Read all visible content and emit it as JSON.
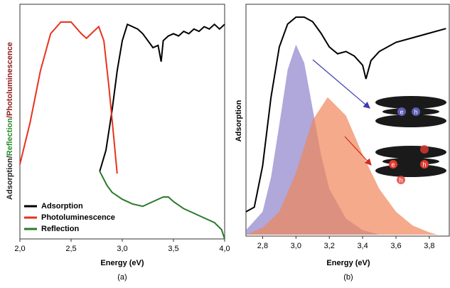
{
  "chart_data": [
    {
      "type": "line",
      "ylabel_parts": [
        {
          "text": "Adsorption/",
          "color": "#222222"
        },
        {
          "text": "Reflection",
          "color": "#2a8a2a"
        },
        {
          "text": "/Photoluminescence",
          "color": "#8b1a1a"
        }
      ],
      "xlabel": "Energy (eV)",
      "caption": "(a)",
      "xlim": [
        2.0,
        4.0
      ],
      "ylim": [
        0,
        1
      ],
      "xticks": [
        {
          "value": 2.0,
          "label": "2,0"
        },
        {
          "value": 2.5,
          "label": "2,5"
        },
        {
          "value": 3.0,
          "label": "3,0"
        },
        {
          "value": 3.5,
          "label": "3,5"
        },
        {
          "value": 4.0,
          "label": "4,0"
        }
      ],
      "legend": "lower left",
      "series": [
        {
          "name": "Adsorption",
          "color": "#000000",
          "x": [
            2.78,
            2.84,
            2.9,
            2.95,
            3.0,
            3.05,
            3.1,
            3.15,
            3.2,
            3.25,
            3.3,
            3.35,
            3.38,
            3.4,
            3.45,
            3.5,
            3.55,
            3.6,
            3.65,
            3.7,
            3.75,
            3.8,
            3.85,
            3.9,
            3.95,
            4.0
          ],
          "values": [
            0.29,
            0.38,
            0.55,
            0.72,
            0.85,
            0.92,
            0.91,
            0.9,
            0.88,
            0.85,
            0.82,
            0.83,
            0.76,
            0.85,
            0.87,
            0.88,
            0.87,
            0.89,
            0.88,
            0.9,
            0.89,
            0.91,
            0.9,
            0.92,
            0.9,
            0.92
          ]
        },
        {
          "name": "Photoluminescence",
          "color": "#e8321e",
          "x": [
            2.0,
            2.1,
            2.2,
            2.3,
            2.4,
            2.5,
            2.6,
            2.65,
            2.72,
            2.77,
            2.82,
            2.87,
            2.92,
            2.95
          ],
          "values": [
            0.32,
            0.5,
            0.72,
            0.88,
            0.93,
            0.93,
            0.88,
            0.86,
            0.89,
            0.91,
            0.85,
            0.65,
            0.42,
            0.28
          ]
        },
        {
          "name": "Reflection",
          "color": "#2a7a2a",
          "x": [
            2.78,
            2.85,
            2.9,
            3.0,
            3.1,
            3.2,
            3.3,
            3.4,
            3.45,
            3.5,
            3.6,
            3.7,
            3.8,
            3.9,
            3.97,
            4.0
          ],
          "values": [
            0.29,
            0.23,
            0.2,
            0.17,
            0.15,
            0.14,
            0.16,
            0.18,
            0.18,
            0.16,
            0.13,
            0.11,
            0.09,
            0.07,
            0.04,
            0.0
          ]
        }
      ]
    },
    {
      "type": "line",
      "ylabel": "Adsorption",
      "xlabel": "Energy (eV)",
      "caption": "(b)",
      "xlim": [
        2.7,
        3.92
      ],
      "ylim": [
        0,
        1
      ],
      "xticks": [
        {
          "value": 2.8,
          "label": "2,8"
        },
        {
          "value": 3.0,
          "label": "3,0"
        },
        {
          "value": 3.2,
          "label": "3,2"
        },
        {
          "value": 3.4,
          "label": "3,4"
        },
        {
          "value": 3.6,
          "label": "3,6"
        },
        {
          "value": 3.8,
          "label": "3,8"
        }
      ],
      "annotations": [
        "e",
        "h",
        "e",
        "h",
        "h"
      ],
      "series": [
        {
          "color": "#8f82cc",
          "style": "area",
          "x": [
            2.7,
            2.8,
            2.85,
            2.9,
            2.95,
            3.0,
            3.05,
            3.1,
            3.15,
            3.2,
            3.3,
            3.4,
            3.5
          ],
          "values": [
            0.02,
            0.1,
            0.25,
            0.48,
            0.72,
            0.83,
            0.75,
            0.55,
            0.35,
            0.2,
            0.07,
            0.02,
            0.0
          ]
        },
        {
          "color": "#f0865a",
          "style": "area",
          "x": [
            2.7,
            2.8,
            2.9,
            3.0,
            3.1,
            3.19,
            3.3,
            3.4,
            3.5,
            3.6,
            3.7,
            3.8,
            3.85
          ],
          "values": [
            0.0,
            0.03,
            0.1,
            0.27,
            0.5,
            0.6,
            0.52,
            0.35,
            0.2,
            0.1,
            0.04,
            0.01,
            0.0
          ]
        },
        {
          "color": "#000000",
          "style": "line",
          "x": [
            2.7,
            2.75,
            2.8,
            2.85,
            2.9,
            2.95,
            3.0,
            3.05,
            3.1,
            3.15,
            3.2,
            3.25,
            3.3,
            3.35,
            3.4,
            3.42,
            3.45,
            3.5,
            3.6,
            3.7,
            3.8,
            3.9
          ],
          "values": [
            0.1,
            0.12,
            0.3,
            0.6,
            0.82,
            0.92,
            0.95,
            0.95,
            0.93,
            0.88,
            0.82,
            0.79,
            0.8,
            0.78,
            0.74,
            0.68,
            0.76,
            0.8,
            0.84,
            0.86,
            0.88,
            0.9
          ]
        }
      ]
    }
  ]
}
